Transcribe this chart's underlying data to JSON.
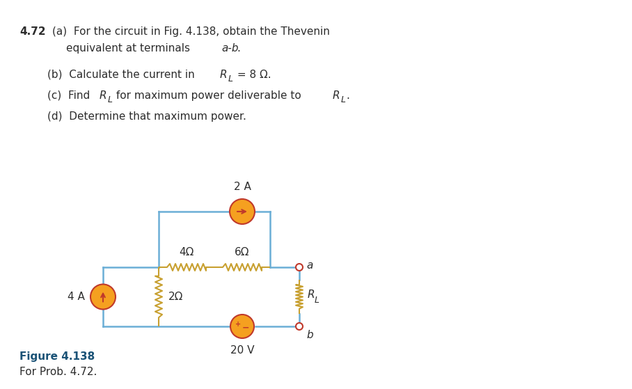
{
  "wire_color": "#6baed6",
  "resistor_color": "#c8a030",
  "source_fill": "#f5a020",
  "source_edge": "#c0392b",
  "text_color": "#2c2c2c",
  "fig_label_color": "#1a5276",
  "fig_label": "Figure 4.138",
  "fig_caption": "For Prob. 4.72.",
  "label_2A": "2 A",
  "label_4A": "4 A",
  "label_4ohm": "4Ω",
  "label_6ohm": "6Ω",
  "label_2ohm": "2Ω",
  "label_20V": "20 V",
  "label_RL": "R",
  "label_RL_sub": "L",
  "label_a": "a",
  "label_b": "b"
}
